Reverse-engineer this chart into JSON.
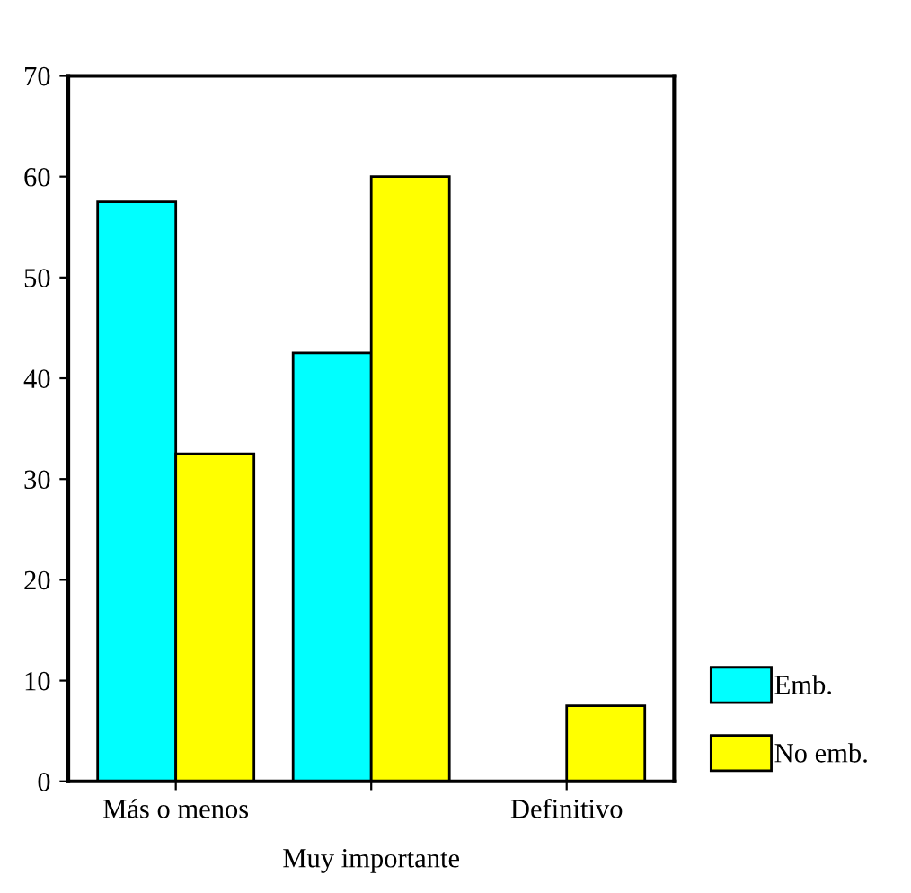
{
  "chart_data": {
    "type": "bar",
    "categories": [
      "Más o menos",
      "Muy importante",
      "Definitivo"
    ],
    "series": [
      {
        "name": "Emb.",
        "color": "#00ffff",
        "values": [
          57.5,
          42.5,
          0
        ]
      },
      {
        "name": "No emb.",
        "color": "#ffff00",
        "values": [
          32.5,
          60,
          7.5
        ]
      }
    ],
    "ylim": [
      0,
      70
    ],
    "yticks": [
      0,
      10,
      20,
      30,
      40,
      50,
      60,
      70
    ],
    "grid": false,
    "legend": "bottom right"
  }
}
